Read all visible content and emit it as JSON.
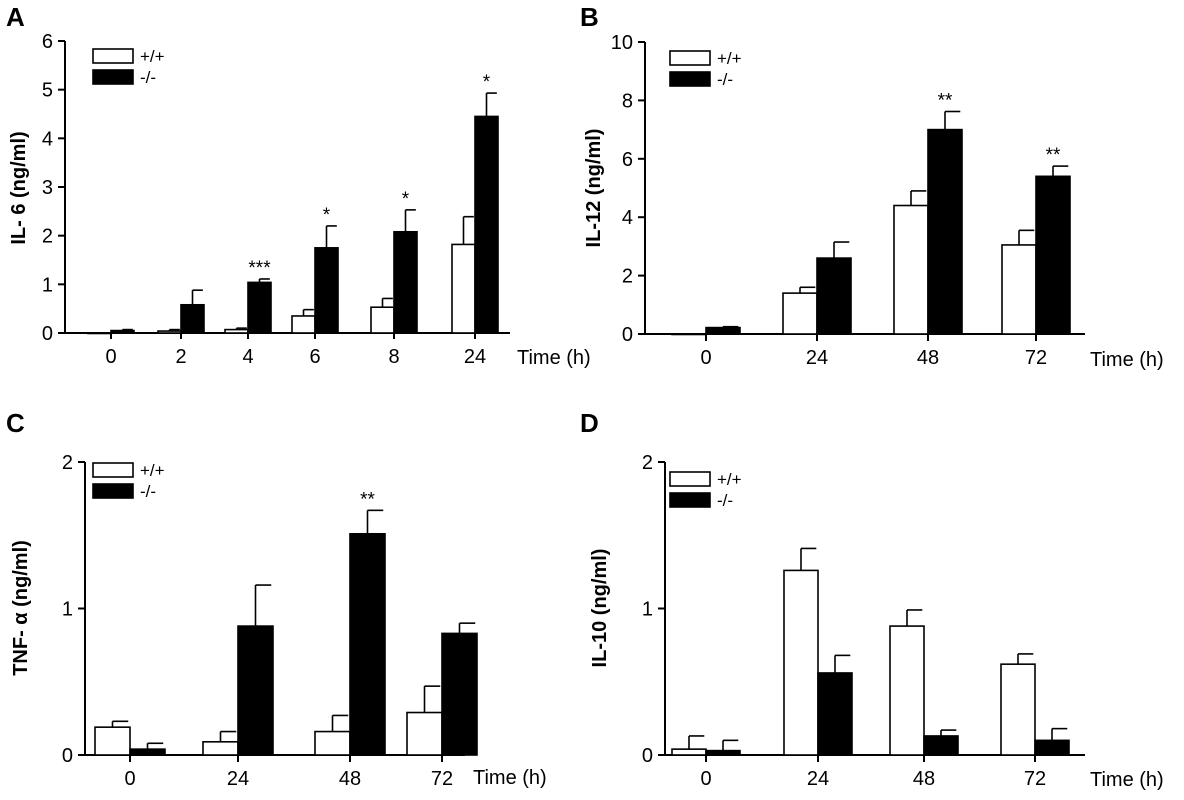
{
  "figure": {
    "panels": [
      {
        "letter": "A",
        "ylabel": "IL- 6 (ng/ml)",
        "xunit": "Time (h)"
      },
      {
        "letter": "B",
        "ylabel": "IL-12 (ng/ml)",
        "xunit": "Time (h)"
      },
      {
        "letter": "C",
        "ylabel": "TNF- α (ng/ml)",
        "xunit": "Time (h)"
      },
      {
        "letter": "D",
        "ylabel": "IL-10 (ng/ml)",
        "xunit": "Time (h)"
      }
    ],
    "bar_colors": {
      "wild_type": "#ffffff",
      "knockout": "#000000"
    }
  },
  "chart_data": [
    {
      "type": "bar",
      "panel": "A",
      "categories": [
        "0",
        "2",
        "4",
        "6",
        "8",
        "24"
      ],
      "xlabel": "Time (h)",
      "ylabel": "IL- 6 (ng/ml)",
      "ylim": [
        0,
        6
      ],
      "yticks": [
        "0",
        "1",
        "2",
        "3",
        "4",
        "5",
        "6"
      ],
      "legend_position": "top-left",
      "series": [
        {
          "name": "+/+",
          "values": [
            0.0,
            0.04,
            0.07,
            0.35,
            0.53,
            1.82
          ],
          "errors": [
            0.0,
            0.03,
            0.03,
            0.13,
            0.18,
            0.57
          ]
        },
        {
          "name": "-/-",
          "values": [
            0.05,
            0.58,
            1.04,
            1.75,
            2.08,
            4.45
          ],
          "errors": [
            0.02,
            0.3,
            0.07,
            0.45,
            0.45,
            0.48
          ]
        }
      ],
      "significance": [
        "",
        "",
        "***",
        "*",
        "*",
        "*"
      ]
    },
    {
      "type": "bar",
      "panel": "B",
      "categories": [
        "0",
        "24",
        "48",
        "72"
      ],
      "xlabel": "Time (h)",
      "ylabel": "IL-12 (ng/ml)",
      "ylim": [
        0,
        10
      ],
      "yticks": [
        "0",
        "2",
        "4",
        "6",
        "8",
        "10"
      ],
      "legend_position": "top-left",
      "series": [
        {
          "name": "+/+",
          "values": [
            0.0,
            1.4,
            4.4,
            3.05
          ],
          "errors": [
            0.0,
            0.2,
            0.5,
            0.5
          ]
        },
        {
          "name": "-/-",
          "values": [
            0.22,
            2.6,
            7.0,
            5.4
          ],
          "errors": [
            0.03,
            0.55,
            0.62,
            0.35
          ]
        }
      ],
      "significance": [
        "",
        "",
        "**",
        "**"
      ]
    },
    {
      "type": "bar",
      "panel": "C",
      "categories": [
        "0",
        "24",
        "48",
        "72"
      ],
      "xlabel": "Time (h)",
      "ylabel": "TNF- α (ng/ml)",
      "ylim": [
        0,
        2
      ],
      "yticks": [
        "0",
        "1",
        "2"
      ],
      "legend_position": "top-left",
      "series": [
        {
          "name": "+/+",
          "values": [
            0.19,
            0.09,
            0.16,
            0.29
          ],
          "errors": [
            0.04,
            0.07,
            0.11,
            0.18
          ]
        },
        {
          "name": "-/-",
          "values": [
            0.04,
            0.88,
            1.51,
            0.83
          ],
          "errors": [
            0.04,
            0.28,
            0.16,
            0.07
          ]
        }
      ],
      "significance": [
        "",
        "",
        "**",
        ""
      ]
    },
    {
      "type": "bar",
      "panel": "D",
      "categories": [
        "0",
        "24",
        "48",
        "72"
      ],
      "xlabel": "Time (h)",
      "ylabel": "IL-10 (ng/ml)",
      "ylim": [
        0,
        2
      ],
      "yticks": [
        "0",
        "1",
        "2"
      ],
      "legend_position": "top-left",
      "series": [
        {
          "name": "+/+",
          "values": [
            0.04,
            1.26,
            0.88,
            0.62
          ],
          "errors": [
            0.09,
            0.15,
            0.11,
            0.07
          ]
        },
        {
          "name": "-/-",
          "values": [
            0.03,
            0.56,
            0.13,
            0.1
          ],
          "errors": [
            0.07,
            0.12,
            0.04,
            0.08
          ]
        }
      ],
      "significance": [
        "",
        "",
        "",
        ""
      ]
    }
  ]
}
